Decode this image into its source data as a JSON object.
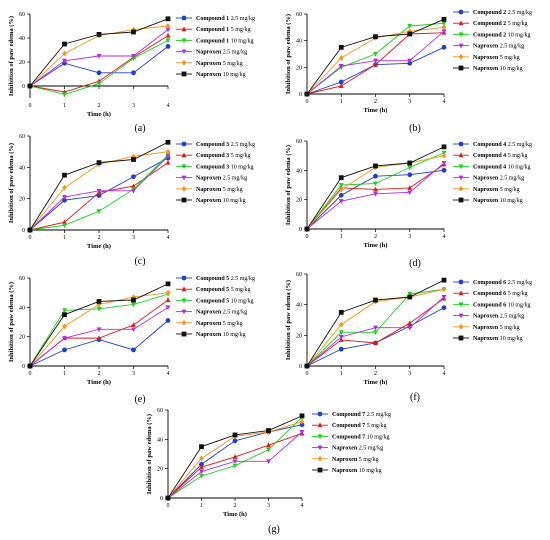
{
  "colors": {
    "blue": "#1f3fd1",
    "red": "#e01b1b",
    "green": "#1fd11f",
    "purple": "#b02ee0",
    "orange": "#f2961c",
    "black": "#111111"
  },
  "shared": {
    "x_ticks": [
      "0",
      "1",
      "2",
      "3",
      "4"
    ],
    "xlabel": "Time (h)",
    "ylabel": "Inhibition of paw edema (%)",
    "y_ticks": [
      "0",
      "20",
      "40",
      "60"
    ]
  },
  "chart_data": [
    {
      "panel": "(a)",
      "type": "line",
      "x": [
        0,
        1,
        2,
        3,
        4
      ],
      "xlabel": "Time (h)",
      "ylabel": "Inhibition of paw edema (%)",
      "xlim": [
        0,
        4
      ],
      "ylim": [
        -10,
        60
      ],
      "y_ticks": [
        "0",
        "20",
        "40",
        "60"
      ],
      "series": [
        {
          "name": "Compound 1 2.5 mg/kg",
          "compound": "Compound 1",
          "dose": "2.5 mg/kg",
          "color": "#1f3fd1",
          "marker": "circle",
          "values": [
            0,
            19,
            11,
            11,
            33
          ]
        },
        {
          "name": "Compound 1 5 mg/kg",
          "compound": "Compound 1",
          "dose": "5 mg/kg",
          "color": "#e01b1b",
          "marker": "triangle-up",
          "values": [
            0,
            -5,
            4,
            24,
            42
          ]
        },
        {
          "name": "Compound 1 10 mg/kg",
          "compound": "Compound 1",
          "dose": "10 mg/kg",
          "color": "#1fd11f",
          "marker": "triangle-down",
          "values": [
            0,
            -7,
            2,
            23,
            38
          ]
        },
        {
          "name": "Naproxen 2.5 mg/kg",
          "compound": "Naproxen",
          "dose": "2.5 mg/kg",
          "color": "#b02ee0",
          "marker": "triangle-down",
          "values": [
            0,
            21,
            25,
            25,
            47
          ]
        },
        {
          "name": "Naproxen 5 mg/kg",
          "compound": "Naproxen",
          "dose": "5 mg/kg",
          "color": "#f2961c",
          "marker": "diamond",
          "values": [
            0,
            27,
            42,
            47,
            50
          ]
        },
        {
          "name": "Naproxen 10 mg/kg",
          "compound": "Naproxen",
          "dose": "10 mg/kg",
          "color": "#111111",
          "marker": "square",
          "values": [
            0,
            35,
            43,
            45,
            56
          ]
        }
      ]
    },
    {
      "panel": "(b)",
      "type": "line",
      "x": [
        0,
        1,
        2,
        3,
        4
      ],
      "xlabel": "Time (h)",
      "ylabel": "Inhibition of paw edema (%)",
      "xlim": [
        0,
        4
      ],
      "ylim": [
        0,
        60
      ],
      "y_ticks": [
        "0",
        "20",
        "40",
        "60"
      ],
      "series": [
        {
          "name": "Compound 2 2.5 mg/kg",
          "compound": "Compound 2",
          "dose": "2.5 mg/kg",
          "color": "#1f3fd1",
          "marker": "circle",
          "values": [
            0,
            9,
            22,
            23,
            35
          ]
        },
        {
          "name": "Compound 2 5 mg/kg",
          "compound": "Compound 2",
          "dose": "5 mg/kg",
          "color": "#e01b1b",
          "marker": "triangle-up",
          "values": [
            0,
            6,
            22,
            45,
            46
          ]
        },
        {
          "name": "Compound 2 10 mg/kg",
          "compound": "Compound 2",
          "dose": "10 mg/kg",
          "color": "#1fd11f",
          "marker": "triangle-down",
          "values": [
            0,
            20,
            30,
            51,
            53
          ]
        },
        {
          "name": "Naproxen 2.5 mg/kg",
          "compound": "Naproxen",
          "dose": "2.5 mg/kg",
          "color": "#b02ee0",
          "marker": "triangle-down",
          "values": [
            0,
            21,
            25,
            25,
            47
          ]
        },
        {
          "name": "Naproxen 5 mg/kg",
          "compound": "Naproxen",
          "dose": "5 mg/kg",
          "color": "#f2961c",
          "marker": "diamond",
          "values": [
            0,
            27,
            42,
            47,
            50
          ]
        },
        {
          "name": "Naproxen 10 mg/kg",
          "compound": "Naproxen",
          "dose": "10 mg/kg",
          "color": "#111111",
          "marker": "square",
          "values": [
            0,
            35,
            43,
            45,
            56
          ]
        }
      ]
    },
    {
      "panel": "(c)",
      "type": "line",
      "x": [
        0,
        1,
        2,
        3,
        4
      ],
      "xlabel": "Time (h)",
      "ylabel": "Inhibition of paw edema (%)",
      "xlim": [
        0,
        4
      ],
      "ylim": [
        0,
        60
      ],
      "y_ticks": [
        "0",
        "20",
        "40",
        "60"
      ],
      "series": [
        {
          "name": "Compound 3 2.5 mg/kg",
          "compound": "Compound 3",
          "dose": "2.5 mg/kg",
          "color": "#1f3fd1",
          "marker": "circle",
          "values": [
            0,
            19,
            22,
            34,
            46
          ]
        },
        {
          "name": "Compound 3 5 mg/kg",
          "compound": "Compound 3",
          "dose": "5 mg/kg",
          "color": "#e01b1b",
          "marker": "triangle-up",
          "values": [
            0,
            5,
            24,
            28,
            43
          ]
        },
        {
          "name": "Compound 3 10 mg/kg",
          "compound": "Compound 3",
          "dose": "10 mg/kg",
          "color": "#1fd11f",
          "marker": "triangle-down",
          "values": [
            0,
            3,
            12,
            26,
            48
          ]
        },
        {
          "name": "Naproxen 2.5 mg/kg",
          "compound": "Naproxen",
          "dose": "2.5 mg/kg",
          "color": "#b02ee0",
          "marker": "triangle-down",
          "values": [
            0,
            21,
            25,
            25,
            47
          ]
        },
        {
          "name": "Naproxen 5 mg/kg",
          "compound": "Naproxen",
          "dose": "5 mg/kg",
          "color": "#f2961c",
          "marker": "diamond",
          "values": [
            0,
            27,
            42,
            47,
            50
          ]
        },
        {
          "name": "Naproxen 10 mg/kg",
          "compound": "Naproxen",
          "dose": "10 mg/kg",
          "color": "#111111",
          "marker": "square",
          "values": [
            0,
            35,
            43,
            45,
            56
          ]
        }
      ]
    },
    {
      "panel": "(d)",
      "type": "line",
      "x": [
        0,
        1,
        2,
        3,
        4
      ],
      "xlabel": "Time (h)",
      "ylabel": "Inhibition of paw edema (%)",
      "xlim": [
        0,
        4
      ],
      "ylim": [
        0,
        60
      ],
      "y_ticks": [
        "0",
        "20",
        "40",
        "60"
      ],
      "series": [
        {
          "name": "Compound 4 2.5 mg/kg",
          "compound": "Compound 4",
          "dose": "2.5 mg/kg",
          "color": "#1f3fd1",
          "marker": "circle",
          "values": [
            0,
            23,
            36,
            37,
            40
          ]
        },
        {
          "name": "Compound 4 5 mg/kg",
          "compound": "Compound 4",
          "dose": "5 mg/kg",
          "color": "#e01b1b",
          "marker": "triangle-up",
          "values": [
            0,
            28,
            27,
            28,
            44
          ]
        },
        {
          "name": "Compound 4 10 mg/kg",
          "compound": "Compound 4",
          "dose": "10 mg/kg",
          "color": "#1fd11f",
          "marker": "triangle-down",
          "values": [
            0,
            30,
            31,
            42,
            52
          ]
        },
        {
          "name": "Naproxen 2.5 mg/kg",
          "compound": "Naproxen",
          "dose": "2.5 mg/kg",
          "color": "#b02ee0",
          "marker": "triangle-down",
          "values": [
            0,
            19,
            24,
            25,
            45
          ]
        },
        {
          "name": "Naproxen 5 mg/kg",
          "compound": "Naproxen",
          "dose": "5 mg/kg",
          "color": "#f2961c",
          "marker": "diamond",
          "values": [
            0,
            27,
            42,
            45,
            50
          ]
        },
        {
          "name": "Naproxen 10 mg/kg",
          "compound": "Naproxen",
          "dose": "10 mg/kg",
          "color": "#111111",
          "marker": "square",
          "values": [
            0,
            35,
            43,
            45,
            56
          ]
        }
      ]
    },
    {
      "panel": "(e)",
      "type": "line",
      "x": [
        0,
        1,
        2,
        3,
        4
      ],
      "xlabel": "Time (h)",
      "ylabel": "Inhibition of paw edema (%)",
      "xlim": [
        0,
        4
      ],
      "ylim": [
        0,
        60
      ],
      "y_ticks": [
        "0",
        "20",
        "40",
        "60"
      ],
      "series": [
        {
          "name": "Compound 5 2.5 mg/kg",
          "compound": "Compound 5",
          "dose": "2.5 mg/kg",
          "color": "#1f3fd1",
          "marker": "circle",
          "values": [
            0,
            11,
            18,
            11,
            31
          ]
        },
        {
          "name": "Compound 5 5 mg/kg",
          "compound": "Compound 5",
          "dose": "5 mg/kg",
          "color": "#e01b1b",
          "marker": "triangle-up",
          "values": [
            0,
            19,
            19,
            28,
            45
          ]
        },
        {
          "name": "Compound 5 10 mg/kg",
          "compound": "Compound 5",
          "dose": "10 mg/kg",
          "color": "#1fd11f",
          "marker": "triangle-down",
          "values": [
            0,
            38,
            39,
            42,
            49
          ]
        },
        {
          "name": "Naproxen 2.5 mg/kg",
          "compound": "Naproxen",
          "dose": "2.5 mg/kg",
          "color": "#b02ee0",
          "marker": "triangle-down",
          "values": [
            0,
            19,
            25,
            25,
            40
          ]
        },
        {
          "name": "Naproxen 5 mg/kg",
          "compound": "Naproxen",
          "dose": "5 mg/kg",
          "color": "#f2961c",
          "marker": "diamond",
          "values": [
            0,
            27,
            42,
            47,
            50
          ]
        },
        {
          "name": "Naproxen 10 mg/kg",
          "compound": "Naproxen",
          "dose": "10 mg/kg",
          "color": "#111111",
          "marker": "square",
          "values": [
            0,
            35,
            44,
            45,
            56
          ]
        }
      ]
    },
    {
      "panel": "(f)",
      "type": "line",
      "x": [
        0,
        1,
        2,
        3,
        4
      ],
      "xlabel": "Time (h)",
      "ylabel": "Inhibition of paw edema (%)",
      "xlim": [
        0,
        4
      ],
      "ylim": [
        0,
        60
      ],
      "y_ticks": [
        "0",
        "20",
        "40",
        "60"
      ],
      "series": [
        {
          "name": "Compound 6 2.5 mg/kg",
          "compound": "Compound 6",
          "dose": "2.5 mg/kg",
          "color": "#1f3fd1",
          "marker": "circle",
          "values": [
            0,
            11,
            15,
            26,
            38
          ]
        },
        {
          "name": "Compound 6 5 mg/kg",
          "compound": "Compound 6",
          "dose": "5 mg/kg",
          "color": "#e01b1b",
          "marker": "triangle-up",
          "values": [
            0,
            17,
            15,
            28,
            44
          ]
        },
        {
          "name": "Compound 6 10 mg/kg",
          "compound": "Compound 6",
          "dose": "10 mg/kg",
          "color": "#1fd11f",
          "marker": "triangle-down",
          "values": [
            0,
            22,
            22,
            47,
            50
          ]
        },
        {
          "name": "Naproxen 2.5 mg/kg",
          "compound": "Naproxen",
          "dose": "2.5 mg/kg",
          "color": "#b02ee0",
          "marker": "triangle-down",
          "values": [
            0,
            19,
            25,
            25,
            45
          ]
        },
        {
          "name": "Naproxen 5 mg/kg",
          "compound": "Naproxen",
          "dose": "5 mg/kg",
          "color": "#f2961c",
          "marker": "diamond",
          "values": [
            0,
            27,
            42,
            45,
            50
          ]
        },
        {
          "name": "Naproxen 10 mg/kg",
          "compound": "Naproxen",
          "dose": "10 mg/kg",
          "color": "#111111",
          "marker": "square",
          "values": [
            0,
            35,
            43,
            45,
            56
          ]
        }
      ]
    },
    {
      "panel": "(g)",
      "type": "line",
      "x": [
        0,
        1,
        2,
        3,
        4
      ],
      "xlabel": "Time (h)",
      "ylabel": "Inhibition of paw edema (%)",
      "xlim": [
        0,
        4
      ],
      "ylim": [
        0,
        60
      ],
      "y_ticks": [
        "0",
        "20",
        "40",
        "60"
      ],
      "series": [
        {
          "name": "Compound 7 2.5 mg/kg",
          "compound": "Compound 7",
          "dose": "2.5 mg/kg",
          "color": "#1f3fd1",
          "marker": "circle",
          "values": [
            0,
            23,
            39,
            45,
            50
          ]
        },
        {
          "name": "Compound 7 5 mg/kg",
          "compound": "Compound 7",
          "dose": "5 mg/kg",
          "color": "#e01b1b",
          "marker": "triangle-up",
          "values": [
            0,
            21,
            28,
            36,
            44
          ]
        },
        {
          "name": "Compound 7 10 mg/kg",
          "compound": "Compound 7",
          "dose": "10 mg/kg",
          "color": "#1fd11f",
          "marker": "triangle-down",
          "values": [
            0,
            15,
            22,
            33,
            55
          ]
        },
        {
          "name": "Naproxen 2.5 mg/kg",
          "compound": "Naproxen",
          "dose": "2.5 mg/kg",
          "color": "#b02ee0",
          "marker": "triangle-down",
          "values": [
            0,
            18,
            25,
            25,
            45
          ]
        },
        {
          "name": "Naproxen 5 mg/kg",
          "compound": "Naproxen",
          "dose": "5 mg/kg",
          "color": "#f2961c",
          "marker": "diamond",
          "values": [
            0,
            27,
            42,
            45,
            52
          ]
        },
        {
          "name": "Naproxen 10 mg/kg",
          "compound": "Naproxen",
          "dose": "10 mg/kg",
          "color": "#111111",
          "marker": "square",
          "values": [
            0,
            35,
            43,
            46,
            56
          ]
        }
      ]
    }
  ]
}
